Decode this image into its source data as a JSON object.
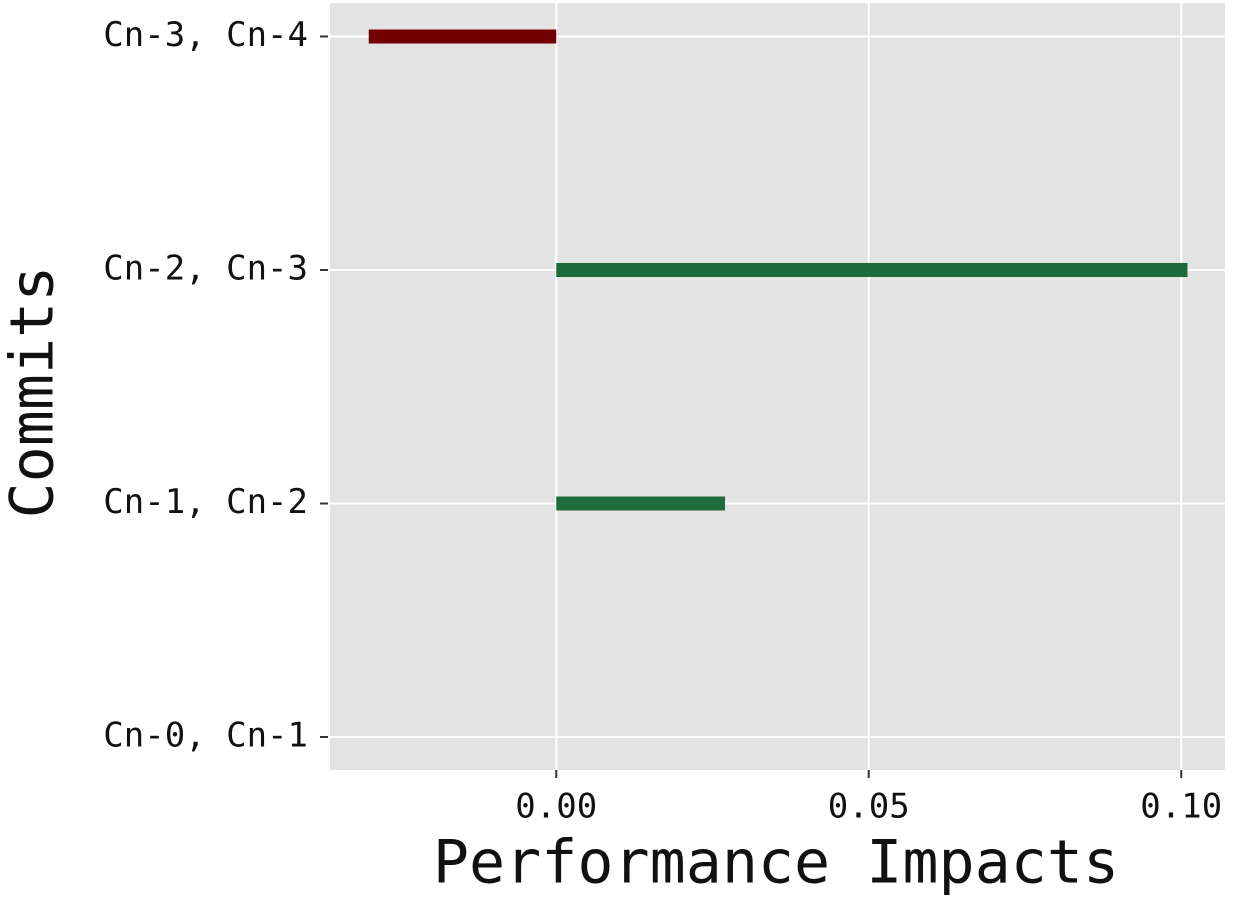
{
  "chart_data": {
    "type": "hbar",
    "xlabel": "Performance Impacts",
    "ylabel": "Commits",
    "categories": [
      "Cn-0, Cn-1",
      "Cn-1, Cn-2",
      "Cn-2, Cn-3",
      "Cn-3, Cn-4"
    ],
    "values": [
      0,
      0.027,
      0.101,
      -0.03
    ],
    "colors": [
      "#1e6b3e",
      "#1e6b3e",
      "#1e6b3e",
      "#720000"
    ],
    "xlim": [
      -0.0362,
      0.107
    ],
    "xticks": [
      {
        "value": 0,
        "label": "0.00"
      },
      {
        "value": 0.05,
        "label": "0.05"
      },
      {
        "value": 0.1,
        "label": "0.10"
      }
    ],
    "grid": true
  }
}
